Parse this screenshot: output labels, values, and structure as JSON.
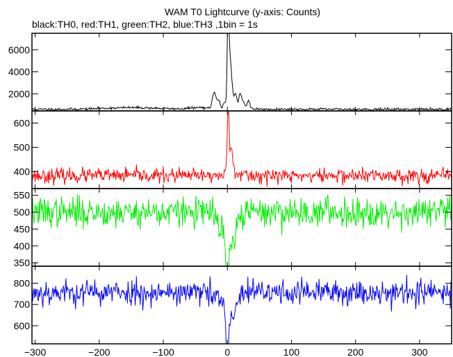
{
  "chart_data": [
    {
      "type": "line",
      "title": "WAM T0 Lightcurve (y-axis: Counts)",
      "subtitle": "black:TH0, red:TH1, green:TH2, blue:TH3 ,1bin = 1s",
      "xlabel": "",
      "ylabel": "",
      "xlim": [
        -305,
        350
      ],
      "xticks": [
        -300,
        -200,
        -100,
        0,
        100,
        200,
        300
      ],
      "xtick_labels": [
        "−300",
        "−200",
        "−100",
        "0",
        "100",
        "200",
        "300"
      ],
      "grid": false,
      "panels": [
        {
          "series": "TH0",
          "color": "#000000",
          "ylim": [
            450,
            7500
          ],
          "yticks": [
            2000,
            4000,
            6000
          ],
          "baseline": 600,
          "noise": 55,
          "seed": 11,
          "features": [
            {
              "x": -150,
              "dy": 150,
              "w": 40
            },
            {
              "x": -45,
              "dy": 150,
              "w": 14
            },
            {
              "x": -19,
              "dy": 1100,
              "w": 3
            },
            {
              "x": -22,
              "dy": 700,
              "w": 2
            },
            {
              "x": -13,
              "dy": 600,
              "w": 2
            },
            {
              "x": -5,
              "dy": 600,
              "w": 2
            },
            {
              "x": 1,
              "dy": 6400,
              "w": 1.2
            },
            {
              "x": 3,
              "dy": 3800,
              "w": 2.5
            },
            {
              "x": 6,
              "dy": 1600,
              "w": 3
            },
            {
              "x": 13,
              "dy": 1100,
              "w": 2
            },
            {
              "x": 20,
              "dy": 1300,
              "w": 2
            },
            {
              "x": 25,
              "dy": 500,
              "w": 2
            },
            {
              "x": 33,
              "dy": 700,
              "w": 2
            }
          ]
        },
        {
          "series": "TH1",
          "color": "#ff0000",
          "ylim": [
            330,
            650
          ],
          "yticks": [
            400,
            500,
            600
          ],
          "baseline": 383,
          "noise": 15,
          "seed": 23,
          "features": [
            {
              "x": 1,
              "dy": 250,
              "w": 1.2
            },
            {
              "x": 4,
              "dy": 110,
              "w": 3
            },
            {
              "x": 9,
              "dy": 25,
              "w": 6
            }
          ]
        },
        {
          "series": "TH2",
          "color": "#00ee00",
          "ylim": [
            340,
            570
          ],
          "yticks": [
            350,
            400,
            450,
            500,
            550
          ],
          "baseline": 500,
          "noise": 22,
          "seed": 37,
          "features": [
            {
              "x": 0,
              "dy": -140,
              "w": 2
            },
            {
              "x": 6,
              "dy": -90,
              "w": 8
            },
            {
              "x": -8,
              "dy": -40,
              "w": 8
            }
          ]
        },
        {
          "series": "TH3",
          "color": "#0000ff",
          "ylim": [
            515,
            880
          ],
          "yticks": [
            600,
            700,
            800
          ],
          "baseline": 757,
          "noise": 30,
          "seed": 53,
          "features": [
            {
              "x": 0,
              "dy": -220,
              "w": 2
            },
            {
              "x": 6,
              "dy": -110,
              "w": 8
            },
            {
              "x": -10,
              "dy": -30,
              "w": 10
            }
          ]
        }
      ]
    }
  ]
}
